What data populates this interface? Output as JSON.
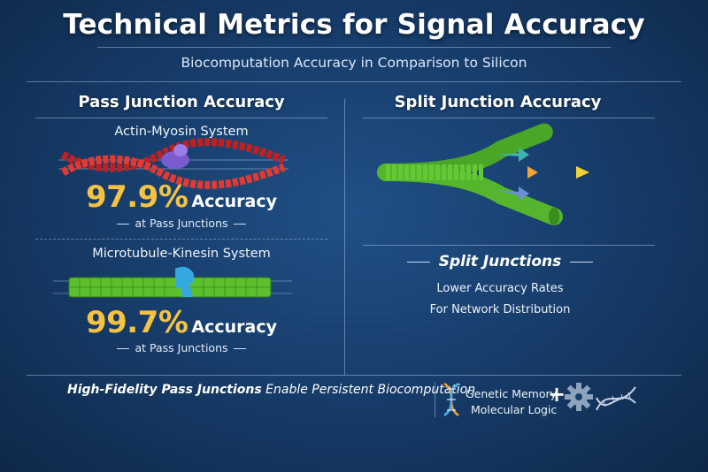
{
  "header": {
    "title": "Technical Metrics for Signal Accuracy",
    "subtitle": "Biocomputation Accuracy in Comparison to Silicon"
  },
  "left_panel": {
    "title": "Pass Junction Accuracy",
    "systems": [
      {
        "name": "Actin-Myosin System",
        "accuracy": "97.9%",
        "accuracy_label": "Accuracy",
        "context": "at Pass Junctions",
        "colors": {
          "filament": "#d42a2a",
          "motor": "#7a5bd1"
        }
      },
      {
        "name": "Microtubule-Kinesin System",
        "accuracy": "99.7%",
        "accuracy_label": "Accuracy",
        "context": "at Pass Junctions",
        "colors": {
          "filament": "#6fcf3a",
          "motor": "#35a8e0"
        }
      }
    ]
  },
  "right_panel": {
    "title": "Split Junction Accuracy",
    "split_heading": "Split Junctions",
    "lines": [
      "Lower Accuracy Rates",
      "For Network Distribution"
    ]
  },
  "footer": {
    "emphasis": "High-Fidelity Pass Junctions",
    "rest": "Enable Persistent Biocomputation",
    "legend": [
      "Genetic Memory",
      "Molecular Logic"
    ],
    "plus": "+",
    "icons": [
      "dna-helix-icon",
      "gear-icon",
      "dna-strand-icon"
    ]
  },
  "colors": {
    "accent": "#f5c242",
    "background": "#163d6c"
  }
}
